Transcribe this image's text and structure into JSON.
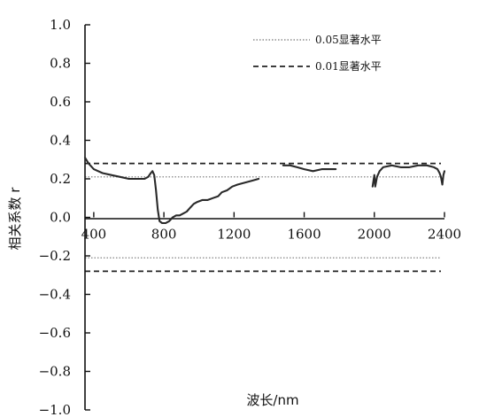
{
  "chart_data": {
    "type": "line",
    "xlabel": "波长/nm",
    "ylabel": "相关系数 r",
    "xlim": [
      350,
      2400
    ],
    "ylim": [
      -1.0,
      1.0
    ],
    "x_ticks": [
      400,
      800,
      1200,
      1600,
      2000,
      2400
    ],
    "y_ticks": [
      1.0,
      0.8,
      0.6,
      0.4,
      0.2,
      0.0,
      -0.2,
      -0.4,
      -0.6,
      -0.8,
      -1.0
    ],
    "y_tick_labels": [
      "1.0",
      "0.8",
      "0.6",
      "0.4",
      "0.2",
      "0.0",
      "−0.2",
      "−0.4",
      "−0.6",
      "−0.8",
      "−1.0"
    ],
    "grid": false,
    "legend_position": "top-right",
    "legend": [
      {
        "label": "0.05显著水平",
        "style": "dotted"
      },
      {
        "label": "0.01显著水平",
        "style": "dashed"
      }
    ],
    "reference_lines": [
      {
        "name": "0.05显著水平",
        "style": "dotted",
        "values": [
          0.21,
          -0.21
        ]
      },
      {
        "name": "0.01显著水平",
        "style": "dashed",
        "values": [
          0.28,
          -0.28
        ]
      }
    ],
    "series": [
      {
        "segments": [
          [
            [
              350,
              0.31
            ],
            [
              370,
              0.28
            ],
            [
              400,
              0.25
            ],
            [
              450,
              0.23
            ],
            [
              500,
              0.22
            ],
            [
              550,
              0.21
            ],
            [
              600,
              0.2
            ],
            [
              650,
              0.2
            ],
            [
              690,
              0.2
            ],
            [
              710,
              0.21
            ],
            [
              725,
              0.23
            ],
            [
              735,
              0.24
            ],
            [
              745,
              0.22
            ],
            [
              755,
              0.14
            ],
            [
              765,
              0.04
            ],
            [
              775,
              -0.02
            ],
            [
              790,
              -0.03
            ],
            [
              810,
              -0.03
            ],
            [
              830,
              -0.02
            ],
            [
              850,
              0.0
            ],
            [
              870,
              0.01
            ],
            [
              890,
              0.01
            ],
            [
              910,
              0.02
            ],
            [
              930,
              0.03
            ],
            [
              950,
              0.05
            ],
            [
              970,
              0.07
            ],
            [
              990,
              0.08
            ],
            [
              1020,
              0.09
            ],
            [
              1050,
              0.09
            ],
            [
              1080,
              0.1
            ],
            [
              1110,
              0.11
            ],
            [
              1130,
              0.13
            ],
            [
              1160,
              0.14
            ],
            [
              1190,
              0.16
            ],
            [
              1220,
              0.17
            ],
            [
              1260,
              0.18
            ],
            [
              1300,
              0.19
            ],
            [
              1340,
              0.2
            ]
          ],
          [
            [
              1480,
              0.27
            ],
            [
              1520,
              0.27
            ],
            [
              1560,
              0.26
            ],
            [
              1600,
              0.25
            ],
            [
              1650,
              0.24
            ],
            [
              1700,
              0.25
            ],
            [
              1750,
              0.25
            ],
            [
              1780,
              0.25
            ]
          ],
          [
            [
              1990,
              0.16
            ],
            [
              1995,
              0.19
            ],
            [
              2000,
              0.22
            ],
            [
              2005,
              0.16
            ],
            [
              2015,
              0.21
            ],
            [
              2030,
              0.24
            ],
            [
              2050,
              0.26
            ],
            [
              2100,
              0.27
            ],
            [
              2150,
              0.26
            ],
            [
              2200,
              0.26
            ],
            [
              2250,
              0.27
            ],
            [
              2300,
              0.27
            ],
            [
              2340,
              0.26
            ],
            [
              2360,
              0.25
            ],
            [
              2372,
              0.23
            ],
            [
              2380,
              0.21
            ],
            [
              2388,
              0.17
            ],
            [
              2394,
              0.22
            ],
            [
              2400,
              0.24
            ]
          ]
        ]
      }
    ]
  }
}
